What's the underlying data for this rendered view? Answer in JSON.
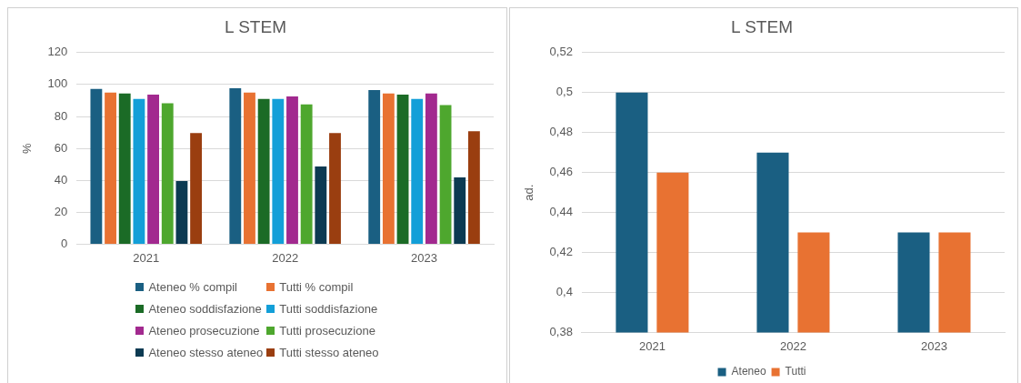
{
  "chart_data": [
    {
      "type": "bar",
      "title": "L STEM",
      "ylabel": "%",
      "categories": [
        "2021",
        "2022",
        "2023"
      ],
      "series": [
        {
          "name": "Ateneo % compil",
          "color": "#1a5f82",
          "values": [
            97.2,
            97.7,
            96.5
          ]
        },
        {
          "name": "Tutti % compil",
          "color": "#e87232",
          "values": [
            94.9,
            94.9,
            94.4
          ]
        },
        {
          "name": "Ateneo soddisfazione",
          "color": "#1b6b26",
          "values": [
            94.4,
            90.9,
            93.7
          ]
        },
        {
          "name": "Tutti soddisfazione",
          "color": "#139fd8",
          "values": [
            90.9,
            90.9,
            90.9
          ]
        },
        {
          "name": "Ateneo prosecuzione",
          "color": "#a2298f",
          "values": [
            93.7,
            92.5,
            94.4
          ]
        },
        {
          "name": "Tutti prosecuzione",
          "color": "#4ea72e",
          "values": [
            88.3,
            87.6,
            87.1
          ]
        },
        {
          "name": "Ateneo stesso ateneo",
          "color": "#0c3a52",
          "values": [
            39.5,
            48.6,
            41.8
          ]
        },
        {
          "name": "Tutti stesso ateneo",
          "color": "#9a3e10",
          "values": [
            69.6,
            69.6,
            70.8
          ]
        }
      ],
      "ylim": [
        0,
        120
      ],
      "yticks": [
        0,
        20,
        40,
        60,
        80,
        100,
        120
      ],
      "grid": "y",
      "legend": "bottom"
    },
    {
      "type": "bar",
      "title": "L STEM",
      "ylabel": "ad.",
      "categories": [
        "2021",
        "2022",
        "2023"
      ],
      "series": [
        {
          "name": "Ateneo",
          "color": "#1a5f82",
          "values": [
            0.5,
            0.47,
            0.43
          ]
        },
        {
          "name": "Tutti",
          "color": "#e87232",
          "values": [
            0.46,
            0.43,
            0.43
          ]
        }
      ],
      "ylim": [
        0.38,
        0.52
      ],
      "yticks": [
        {
          "value": 0.38,
          "label": "0,38"
        },
        {
          "value": 0.4,
          "label": "0,4"
        },
        {
          "value": 0.42,
          "label": "0,42"
        },
        {
          "value": 0.44,
          "label": "0,44"
        },
        {
          "value": 0.46,
          "label": "0,46"
        },
        {
          "value": 0.48,
          "label": "0,48"
        },
        {
          "value": 0.5,
          "label": "0,5"
        },
        {
          "value": 0.52,
          "label": "0,52"
        }
      ],
      "grid": "y",
      "legend": "bottom"
    }
  ]
}
